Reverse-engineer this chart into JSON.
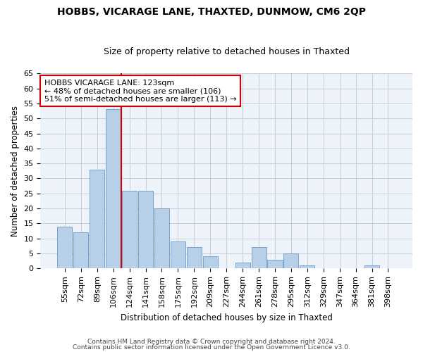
{
  "title": "HOBBS, VICARAGE LANE, THAXTED, DUNMOW, CM6 2QP",
  "subtitle": "Size of property relative to detached houses in Thaxted",
  "xlabel": "Distribution of detached houses by size in Thaxted",
  "ylabel": "Number of detached properties",
  "categories": [
    "55sqm",
    "72sqm",
    "89sqm",
    "106sqm",
    "124sqm",
    "141sqm",
    "158sqm",
    "175sqm",
    "192sqm",
    "209sqm",
    "227sqm",
    "244sqm",
    "261sqm",
    "278sqm",
    "295sqm",
    "312sqm",
    "329sqm",
    "347sqm",
    "364sqm",
    "381sqm",
    "398sqm"
  ],
  "values": [
    14,
    12,
    33,
    53,
    26,
    26,
    20,
    9,
    7,
    4,
    0,
    2,
    7,
    3,
    5,
    1,
    0,
    0,
    0,
    1,
    0
  ],
  "bar_color": "#b8cfe8",
  "bar_edge_color": "#6699cc",
  "vline_index": 3.5,
  "annotation_line1": "HOBBS VICARAGE LANE: 123sqm",
  "annotation_line2": "← 48% of detached houses are smaller (106)",
  "annotation_line3": "51% of semi-detached houses are larger (113) →",
  "annotation_box_color": "white",
  "annotation_border_color": "#cc0000",
  "vline_color": "#cc0000",
  "ylim": [
    0,
    65
  ],
  "yticks": [
    0,
    5,
    10,
    15,
    20,
    25,
    30,
    35,
    40,
    45,
    50,
    55,
    60,
    65
  ],
  "footer1": "Contains HM Land Registry data © Crown copyright and database right 2024.",
  "footer2": "Contains public sector information licensed under the Open Government Licence v3.0.",
  "bg_color": "#eef2f9",
  "grid_color": "#c5cedf",
  "title_fontsize": 10,
  "subtitle_fontsize": 9,
  "axis_label_fontsize": 8.5,
  "tick_fontsize": 8,
  "annotation_fontsize": 8
}
